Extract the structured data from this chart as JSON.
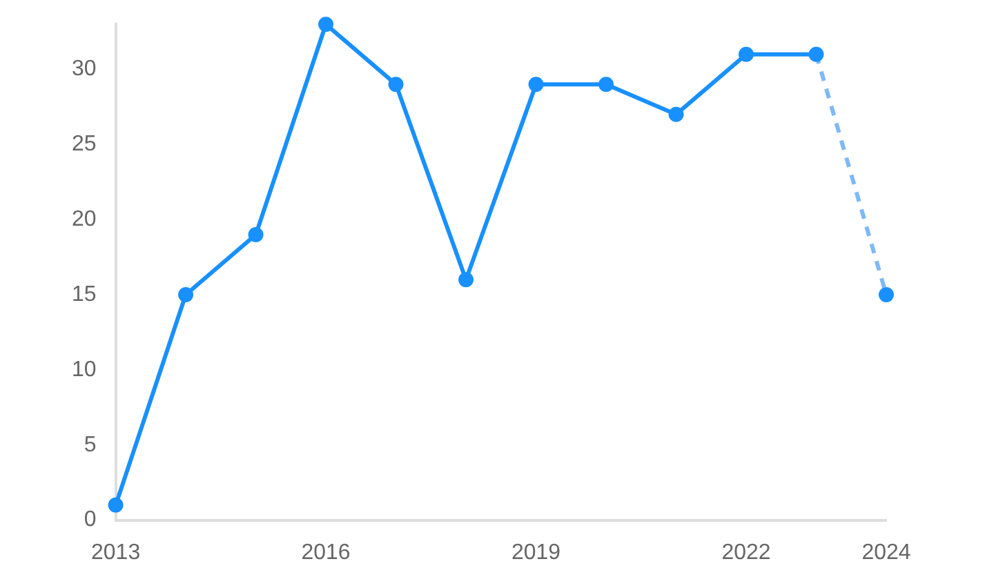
{
  "chart_data": {
    "type": "line",
    "x": [
      2013,
      2014,
      2015,
      2016,
      2017,
      2018,
      2019,
      2020,
      2021,
      2022,
      2023,
      2024
    ],
    "series": [
      {
        "color": "#1890ff",
        "values": [
          1,
          15,
          19,
          33,
          29,
          16,
          29,
          29,
          27,
          31,
          31,
          null
        ],
        "marker": "circle",
        "line_style": "solid"
      },
      {
        "color": "#7fb8f7",
        "values": [
          null,
          null,
          null,
          null,
          null,
          null,
          null,
          null,
          null,
          null,
          31,
          15
        ],
        "marker": "none",
        "line_style": "dashed"
      },
      {
        "type": "scatter",
        "color": "#1890ff",
        "values": [
          null,
          null,
          null,
          null,
          null,
          null,
          null,
          null,
          null,
          null,
          null,
          15
        ],
        "marker": "circle"
      }
    ],
    "xlim": [
      2013,
      2024
    ],
    "xticks": [
      2013,
      2016,
      2019,
      2022,
      2024
    ],
    "ylim": [
      0,
      33
    ],
    "yticks": [
      0,
      5,
      10,
      15,
      20,
      25,
      30
    ],
    "grid": false,
    "legend": false
  }
}
